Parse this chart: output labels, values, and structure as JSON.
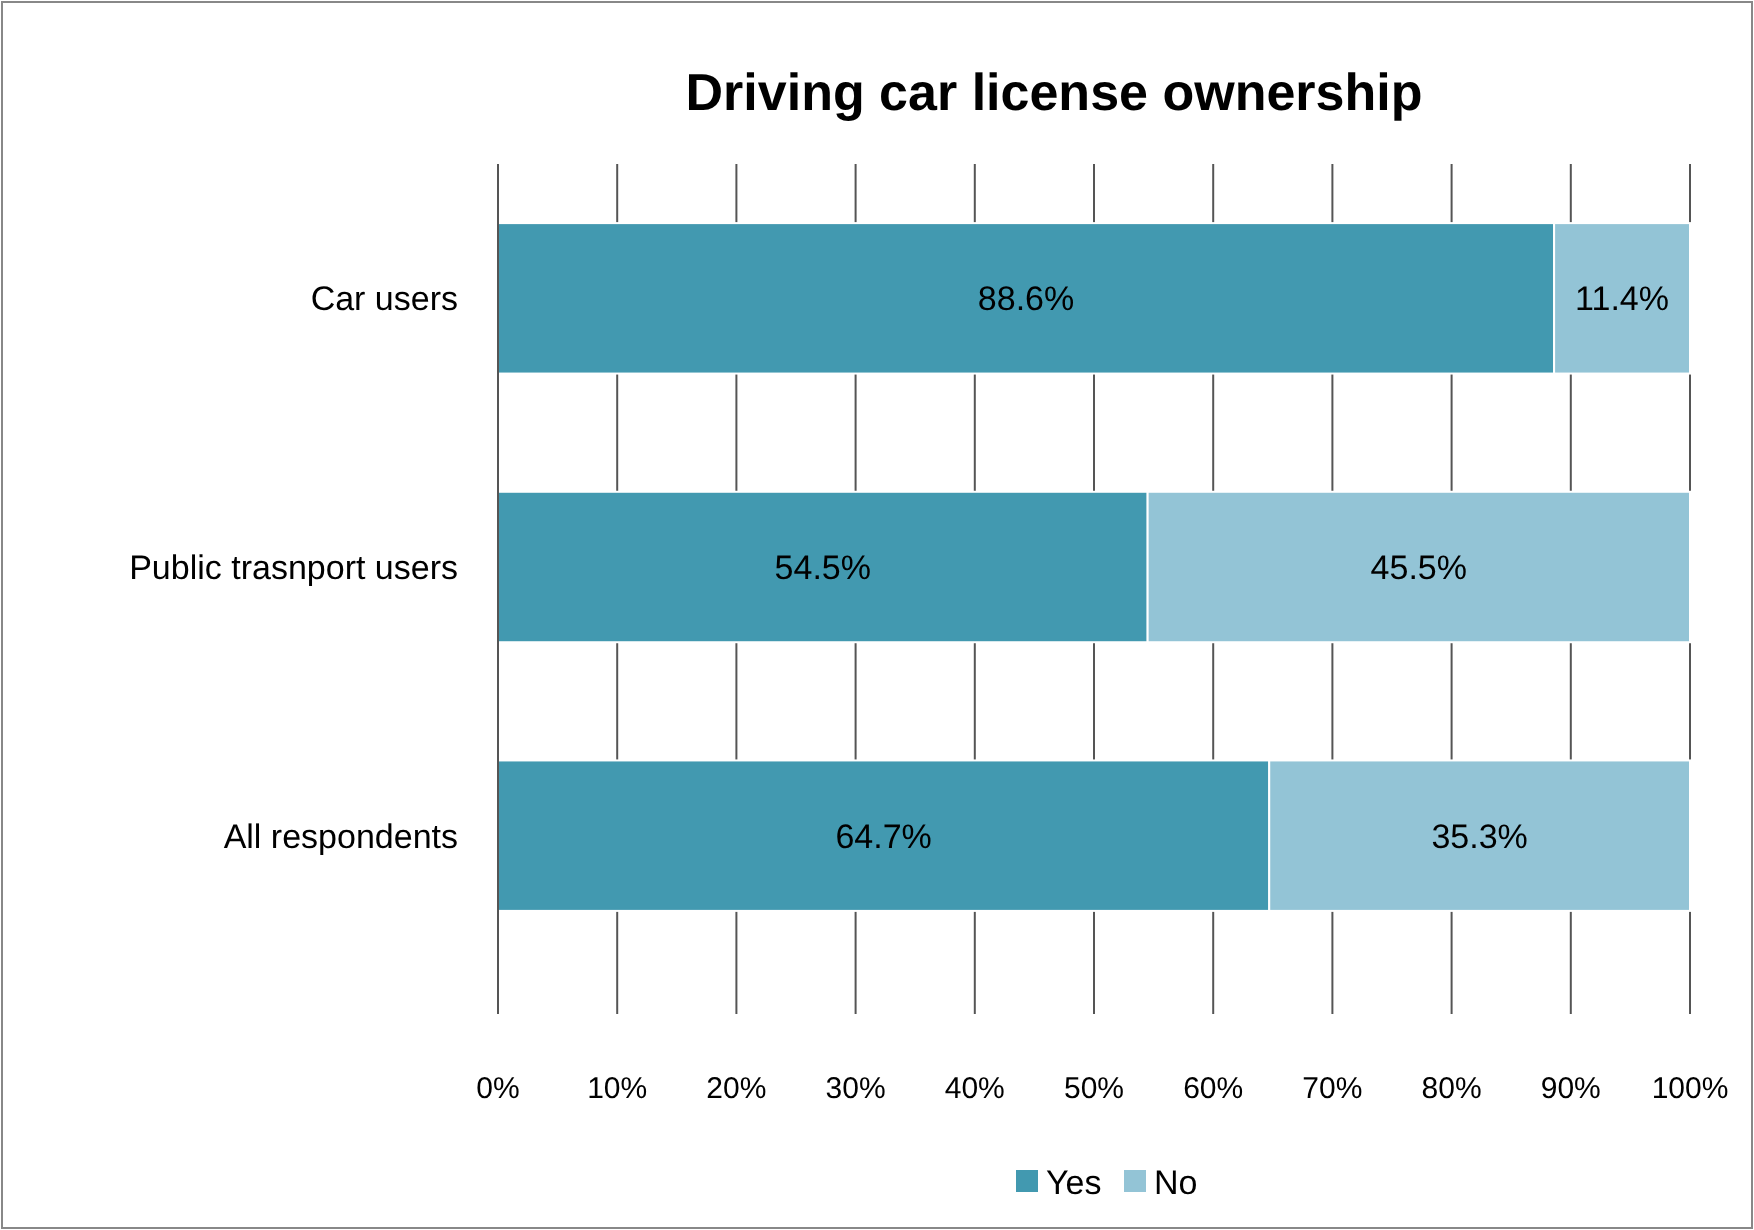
{
  "chart_data": {
    "type": "bar",
    "orientation": "horizontal",
    "stacked": true,
    "title": "Driving car license ownership",
    "categories": [
      "Car users",
      "Public trasnport users",
      "All respondents"
    ],
    "series": [
      {
        "name": "Yes",
        "color": "#4299b0",
        "values": [
          88.6,
          54.5,
          64.7
        ]
      },
      {
        "name": "No",
        "color": "#93c4d6",
        "values": [
          11.4,
          45.5,
          35.3
        ]
      }
    ],
    "value_labels": [
      [
        "88.6%",
        "54.5%",
        "64.7%"
      ],
      [
        "11.4%",
        "45.5%",
        "35.3%"
      ]
    ],
    "xlim": [
      0,
      100
    ],
    "xticks": [
      {
        "value": 0,
        "label": "0%"
      },
      {
        "value": 10,
        "label": "10%"
      },
      {
        "value": 20,
        "label": "20%"
      },
      {
        "value": 30,
        "label": "30%"
      },
      {
        "value": 40,
        "label": "40%"
      },
      {
        "value": 50,
        "label": "50%"
      },
      {
        "value": 60,
        "label": "60%"
      },
      {
        "value": 70,
        "label": "70%"
      },
      {
        "value": 80,
        "label": "80%"
      },
      {
        "value": 90,
        "label": "90%"
      },
      {
        "value": 100,
        "label": "100%"
      }
    ],
    "grid": "x",
    "legend": "bottom"
  }
}
